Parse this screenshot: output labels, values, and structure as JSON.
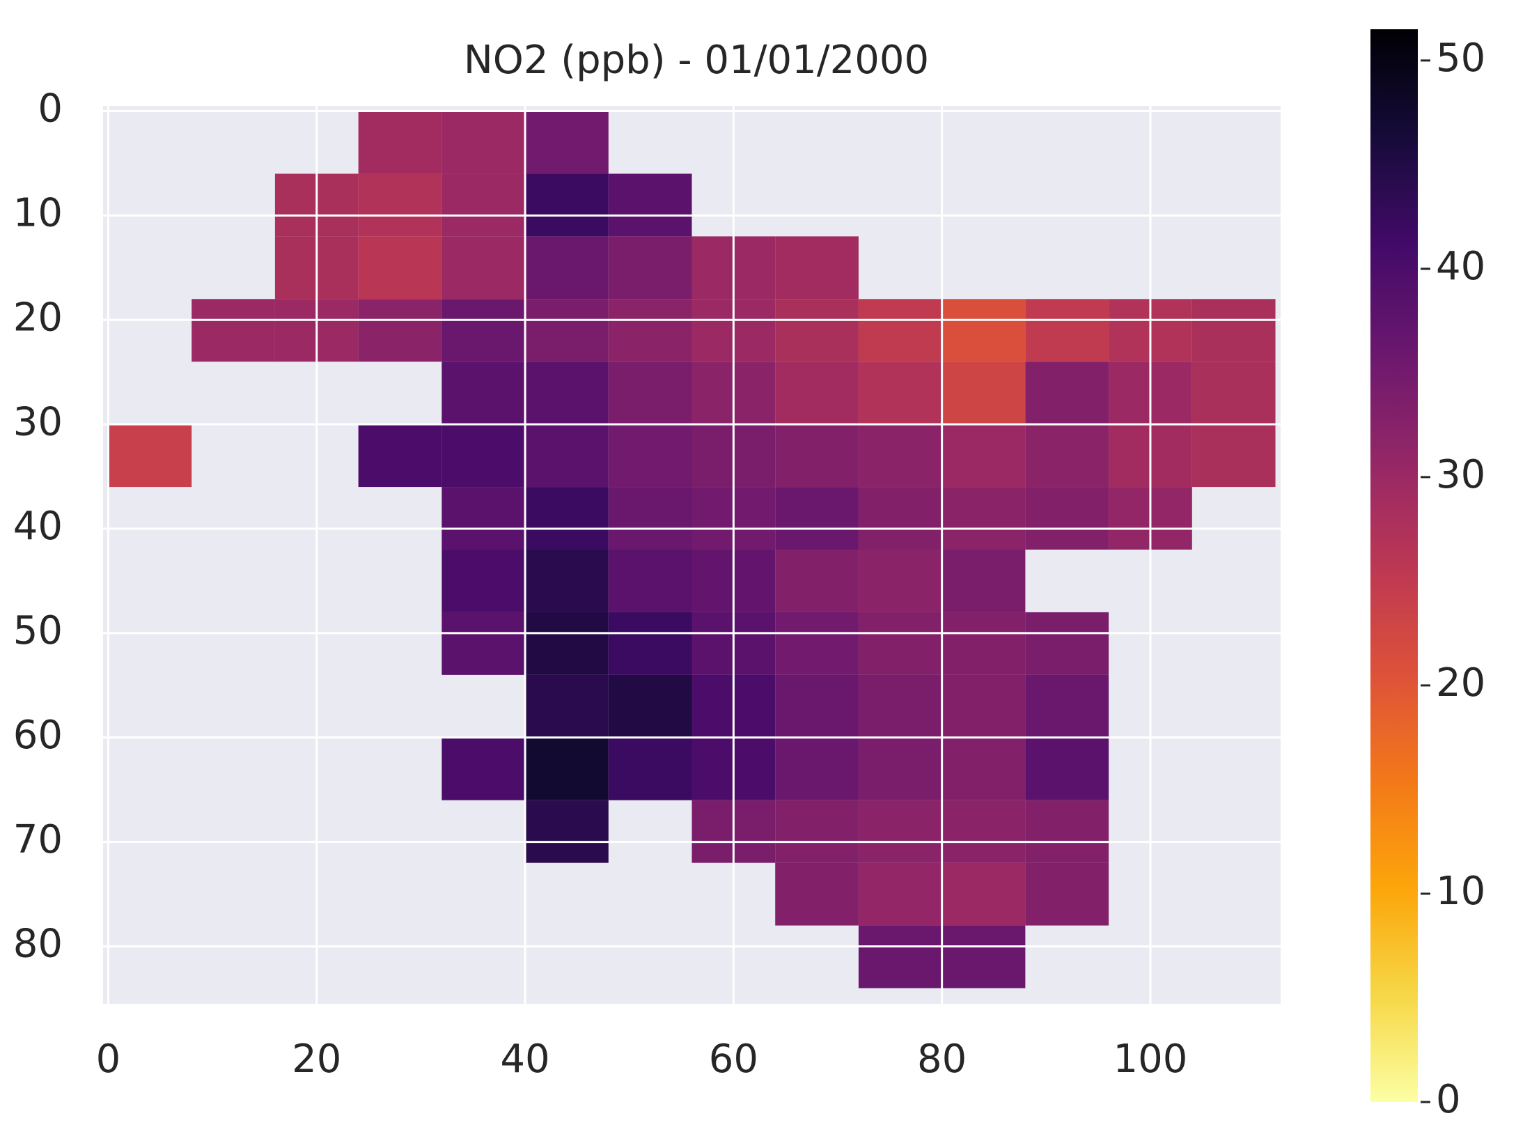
{
  "chart_data": {
    "type": "heatmap",
    "title": "NO2 (ppb) - 01/01/2000",
    "xbins": [
      0,
      8,
      16,
      24,
      32,
      40,
      48,
      56,
      64,
      72,
      80,
      88,
      96,
      104,
      112
    ],
    "ybins": [
      0,
      6,
      12,
      18,
      24,
      30,
      36,
      42,
      48,
      54,
      60,
      66,
      72,
      78,
      84
    ],
    "values": [
      [
        null,
        null,
        null,
        29,
        30,
        35,
        null,
        null,
        null,
        null,
        null,
        null,
        null,
        null
      ],
      [
        null,
        null,
        28,
        27,
        30,
        42,
        38,
        null,
        null,
        null,
        null,
        null,
        null,
        null
      ],
      [
        null,
        null,
        28,
        26,
        30,
        36,
        34,
        30,
        29,
        null,
        null,
        null,
        null,
        null
      ],
      [
        null,
        30,
        30,
        32,
        36,
        34,
        32,
        30,
        28,
        25,
        21,
        25,
        27,
        28
      ],
      [
        null,
        null,
        null,
        null,
        38,
        38,
        34,
        32,
        29,
        27,
        23,
        33,
        30,
        28
      ],
      [
        24,
        null,
        null,
        40,
        40,
        38,
        35,
        34,
        33,
        32,
        30,
        32,
        29,
        28
      ],
      [
        null,
        null,
        null,
        null,
        38,
        42,
        36,
        35,
        36,
        33,
        32,
        33,
        31,
        null
      ],
      [
        null,
        null,
        null,
        null,
        40,
        44,
        38,
        37,
        33,
        32,
        34,
        null,
        null,
        null
      ],
      [
        null,
        null,
        null,
        null,
        38,
        45,
        42,
        38,
        35,
        33,
        33,
        34,
        null,
        null
      ],
      [
        null,
        null,
        null,
        null,
        null,
        44,
        45,
        40,
        36,
        34,
        33,
        36,
        null,
        null
      ],
      [
        null,
        null,
        null,
        null,
        40,
        47,
        42,
        40,
        36,
        34,
        33,
        38,
        null,
        null
      ],
      [
        null,
        null,
        null,
        null,
        null,
        44,
        null,
        34,
        33,
        32,
        32,
        33,
        null,
        null
      ],
      [
        null,
        null,
        null,
        null,
        null,
        null,
        null,
        null,
        33,
        31,
        30,
        33,
        null,
        null
      ],
      [
        null,
        null,
        null,
        null,
        null,
        null,
        null,
        null,
        null,
        36,
        36,
        null,
        null,
        null
      ]
    ],
    "xlim": [
      -0.5,
      112.5
    ],
    "ylim": [
      85.5,
      -0.5
    ],
    "xticks": [
      0,
      20,
      40,
      60,
      80,
      100
    ],
    "yticks": [
      0,
      10,
      20,
      30,
      40,
      50,
      60,
      70,
      80
    ],
    "grid": true,
    "cmap": "inferno_r",
    "colorbar": {
      "lim": [
        0,
        51.5
      ],
      "ticks": [
        0,
        10,
        20,
        30,
        40,
        50
      ]
    }
  }
}
